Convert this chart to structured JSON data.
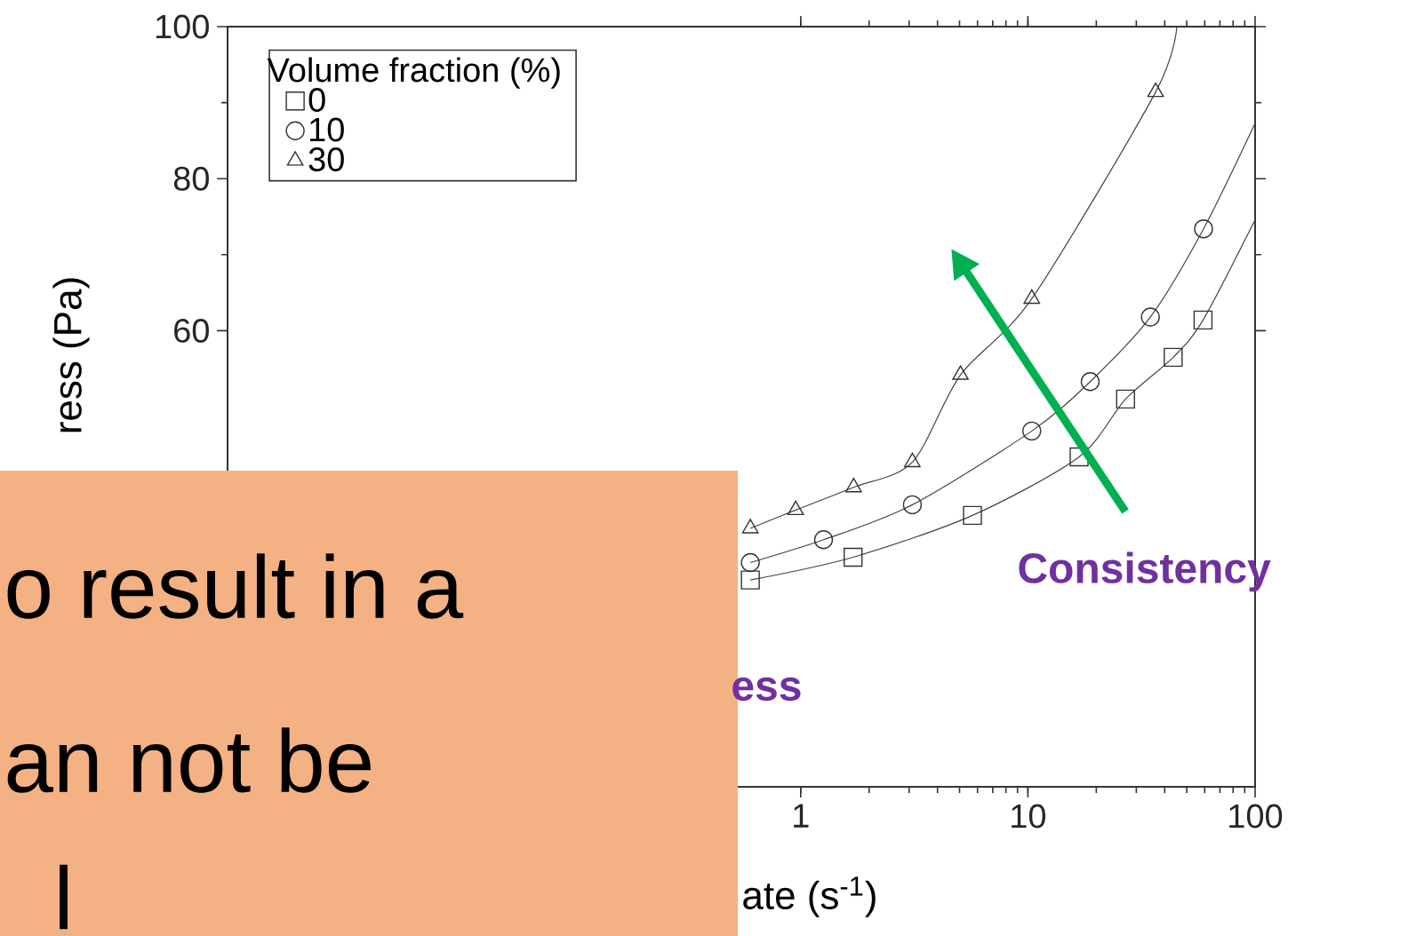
{
  "chart_data": {
    "type": "scatter",
    "xlabel": "ate (s$^{-1}$)",
    "ylabel": "ress (Pa)",
    "legend_title": "Volume fraction (%)",
    "log": "x",
    "xlim": [
      0.003,
      100
    ],
    "ylim": [
      0,
      100
    ],
    "xticks": [
      1,
      10,
      100
    ],
    "yticks": [
      60,
      80,
      100
    ],
    "legend": "top left",
    "grid": false,
    "annotations": [
      "Consistency",
      "ess",
      "o result in a",
      "an not be",
      "l"
    ],
    "series": [
      {
        "name": "0",
        "color": "#333333",
        "marker": "square",
        "x": [
          0.6,
          1.7,
          5.7,
          16.8,
          26.9,
          43.6,
          59
        ],
        "values": [
          27.2,
          30.2,
          35.7,
          43.4,
          51,
          56.5,
          61.4
        ]
      },
      {
        "name": "10",
        "color": "#333333",
        "marker": "circle",
        "x": [
          0.6,
          1.26,
          3.1,
          10.4,
          18.8,
          34.6,
          59.3
        ],
        "values": [
          29.5,
          32.5,
          37.1,
          46.8,
          53.3,
          61.8,
          73.4
        ]
      },
      {
        "name": "30",
        "color": "#333333",
        "marker": "triangle",
        "x": [
          0.6,
          0.95,
          1.71,
          3.1,
          5.05,
          10.4,
          36.5
        ],
        "values": [
          34,
          36.4,
          39.4,
          42.7,
          54.2,
          64.2,
          91.4
        ]
      },
      {
        "type": "line",
        "color": "#444444",
        "x": [
          0.6,
          1.7,
          5.7,
          16.8,
          26.9,
          43.6,
          59,
          100
        ],
        "values": [
          27.2,
          30.2,
          35.7,
          43.4,
          51,
          56.5,
          61.4,
          74.6
        ]
      },
      {
        "type": "line",
        "color": "#444444",
        "x": [
          0.6,
          1.26,
          3.1,
          10.4,
          18.8,
          34.6,
          59.3,
          100
        ],
        "values": [
          29.5,
          32.5,
          37.1,
          46.8,
          53.3,
          61.8,
          73.4,
          87.3
        ]
      },
      {
        "type": "line",
        "color": "#444444",
        "x": [
          0.6,
          0.95,
          1.71,
          3.1,
          5.05,
          10.4,
          36.5,
          45.2
        ],
        "values": [
          34,
          36.4,
          39.4,
          42.7,
          54.2,
          64.2,
          91.4,
          100
        ]
      }
    ]
  }
}
